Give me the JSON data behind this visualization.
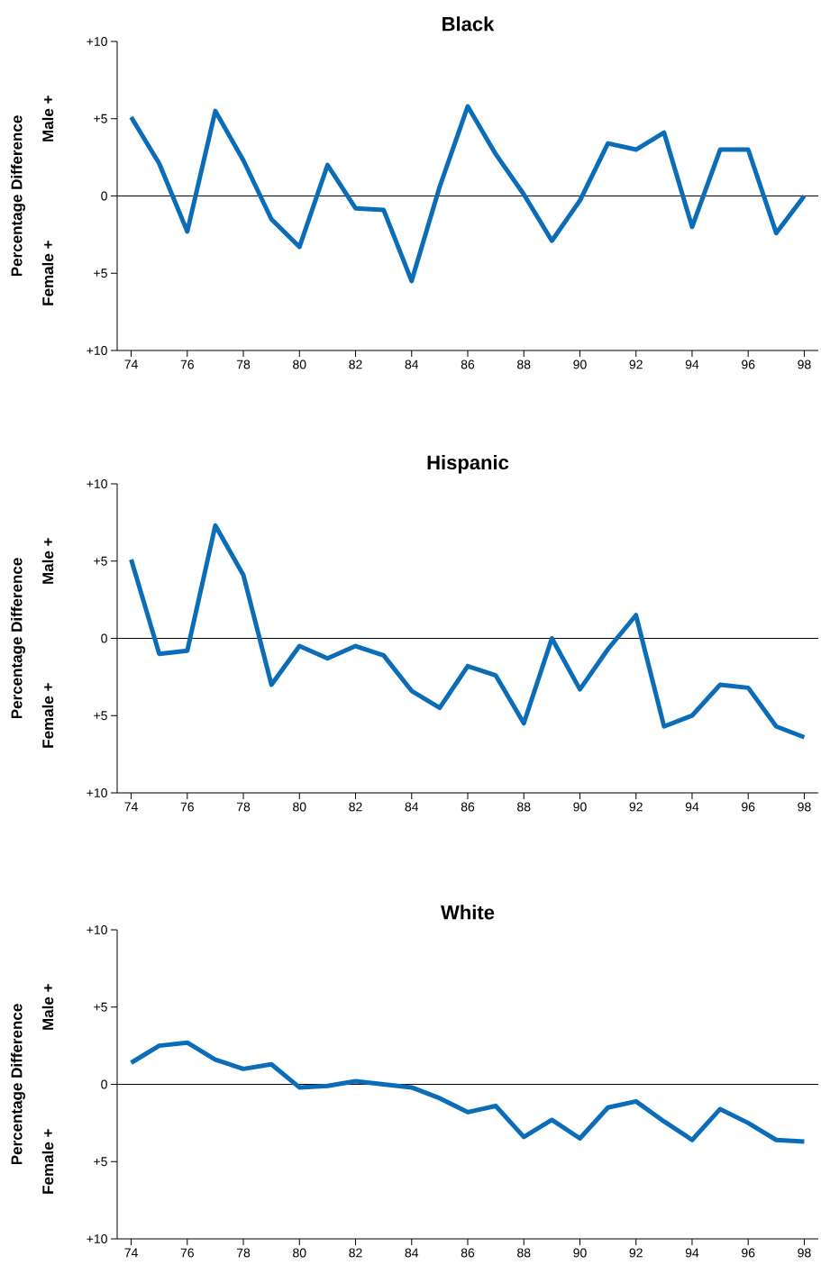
{
  "chart_data": [
    {
      "type": "line",
      "title": "Black",
      "ylabel": "Percentage Difference",
      "annotations": [
        "Male +",
        "Female +"
      ],
      "x": [
        74,
        75,
        76,
        77,
        78,
        79,
        80,
        81,
        82,
        83,
        84,
        85,
        86,
        87,
        88,
        89,
        90,
        91,
        92,
        93,
        94,
        95,
        96,
        97,
        98
      ],
      "series": [
        {
          "color": "#0b6db7",
          "values": [
            5.1,
            2.1,
            -2.3,
            5.5,
            2.3,
            -1.5,
            -3.3,
            2.0,
            -0.8,
            -0.9,
            -5.5,
            0.6,
            5.8,
            2.7,
            0.1,
            -2.9,
            -0.3,
            3.4,
            3.0,
            4.1,
            -2.0,
            3.0,
            3.0,
            -2.4,
            0
          ]
        }
      ],
      "xlim": [
        73.5,
        98.5
      ],
      "ylim": [
        -10,
        10
      ],
      "xticks": [
        74,
        76,
        78,
        80,
        82,
        84,
        86,
        88,
        90,
        92,
        94,
        96,
        98
      ],
      "yticks": [
        {
          "value": -10,
          "label": "+10"
        },
        {
          "value": -5,
          "label": "+5"
        },
        0,
        {
          "value": 5,
          "label": "+5"
        },
        {
          "value": 10,
          "label": "+10"
        }
      ],
      "ref_lines": [
        {
          "axis": "y",
          "value": 0,
          "color": "#000000"
        }
      ],
      "grid": false,
      "marker": "none",
      "line_style": "solid"
    },
    {
      "type": "line",
      "title": "Hispanic",
      "ylabel": "Percentage Difference",
      "annotations": [
        "Male +",
        "Female +"
      ],
      "x": [
        74,
        75,
        76,
        77,
        78,
        79,
        80,
        81,
        82,
        83,
        84,
        85,
        86,
        87,
        88,
        89,
        90,
        91,
        92,
        93,
        94,
        95,
        96,
        97,
        98
      ],
      "series": [
        {
          "color": "#0b6db7",
          "values": [
            5.1,
            -1.0,
            -0.8,
            7.3,
            4.1,
            -3.0,
            -0.5,
            -1.3,
            -0.5,
            -1.1,
            -3.4,
            -4.5,
            -1.8,
            -2.4,
            -5.5,
            0,
            -3.3,
            -0.7,
            1.5,
            -5.7,
            -5.0,
            -3.0,
            -3.2,
            -5.7,
            -6.4
          ]
        }
      ],
      "xlim": [
        73.5,
        98.5
      ],
      "ylim": [
        -10,
        10
      ],
      "xticks": [
        74,
        76,
        78,
        80,
        82,
        84,
        86,
        88,
        90,
        92,
        94,
        96,
        98
      ],
      "yticks": [
        {
          "value": -10,
          "label": "+10"
        },
        {
          "value": -5,
          "label": "+5"
        },
        0,
        {
          "value": 5,
          "label": "+5"
        },
        {
          "value": 10,
          "label": "+10"
        }
      ],
      "ref_lines": [
        {
          "axis": "y",
          "value": 0,
          "color": "#000000"
        }
      ],
      "grid": false,
      "marker": "none",
      "line_style": "solid"
    },
    {
      "type": "line",
      "title": "White",
      "ylabel": "Percentage Difference",
      "annotations": [
        "Male +",
        "Female +"
      ],
      "x": [
        74,
        75,
        76,
        77,
        78,
        79,
        80,
        81,
        82,
        83,
        84,
        85,
        86,
        87,
        88,
        89,
        90,
        91,
        92,
        93,
        94,
        95,
        96,
        97,
        98
      ],
      "series": [
        {
          "color": "#0b6db7",
          "values": [
            1.4,
            2.5,
            2.7,
            1.6,
            1.0,
            1.3,
            -0.2,
            -0.1,
            0.2,
            0,
            -0.2,
            -0.9,
            -1.8,
            -1.4,
            -3.4,
            -2.3,
            -3.5,
            -1.5,
            -1.1,
            -2.4,
            -3.6,
            -1.6,
            -2.5,
            -3.6,
            -3.7
          ]
        }
      ],
      "xlim": [
        73.5,
        98.5
      ],
      "ylim": [
        -10,
        10
      ],
      "xticks": [
        74,
        76,
        78,
        80,
        82,
        84,
        86,
        88,
        90,
        92,
        94,
        96,
        98
      ],
      "yticks": [
        {
          "value": -10,
          "label": "+10"
        },
        {
          "value": -5,
          "label": "+5"
        },
        0,
        {
          "value": 5,
          "label": "+5"
        },
        {
          "value": 10,
          "label": "+10"
        }
      ],
      "ref_lines": [
        {
          "axis": "y",
          "value": 0,
          "color": "#000000"
        }
      ],
      "grid": false,
      "marker": "none",
      "line_style": "solid"
    }
  ]
}
